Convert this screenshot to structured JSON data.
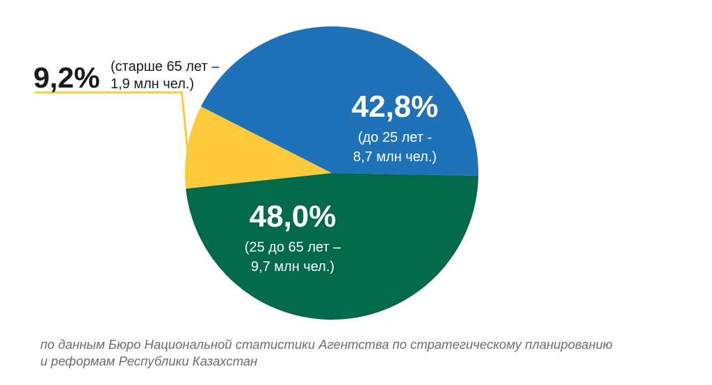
{
  "chart_data": {
    "type": "pie",
    "slices": [
      {
        "value": 42.8,
        "label": "42,8%",
        "lines": [
          "(до 25 лет -",
          "8,7 млн чел.)"
        ],
        "color": "#1f71b8"
      },
      {
        "value": 48.0,
        "label": "48,0%",
        "lines": [
          "(25 до 65 лет –",
          "9,7 млн чел.)"
        ],
        "color": "#02694a"
      },
      {
        "value": 9.2,
        "label": "9,2%",
        "lines": [
          "(старше 65 лет –",
          "1,9 млн чел.)"
        ],
        "color": "#fec93b"
      }
    ]
  },
  "footer": {
    "line1": "по данным Бюро Национальной статистики Агентства по стратегическому планированию",
    "line2": "и реформам Республики Казахстан"
  }
}
